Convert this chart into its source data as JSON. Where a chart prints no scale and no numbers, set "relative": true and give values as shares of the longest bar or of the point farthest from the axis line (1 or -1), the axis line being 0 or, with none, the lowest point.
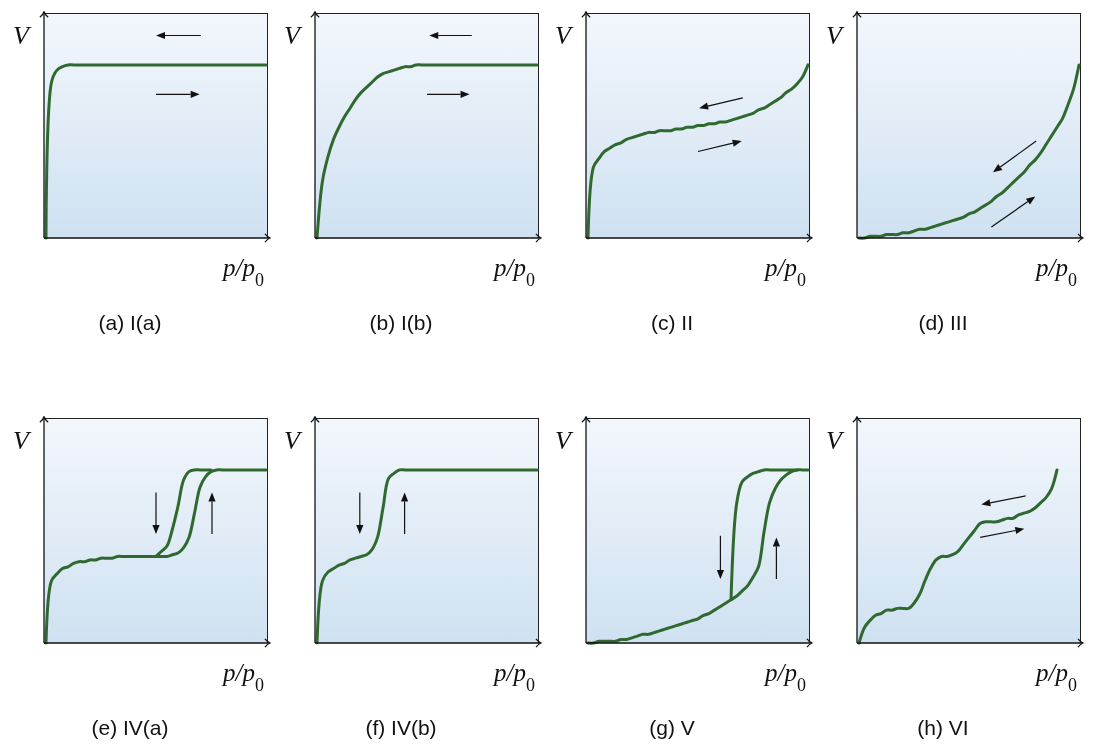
{
  "chart_data": [
    {
      "type": "line",
      "title": "(a) I(a)",
      "xlabel": "p/p$_{0}$",
      "ylabel": "V",
      "relative": true,
      "tick_labels": false,
      "categories": [
        null,
        null,
        null,
        null,
        null,
        null,
        null,
        null,
        null,
        null,
        null,
        null,
        null,
        null,
        null,
        null,
        null,
        null,
        null,
        null,
        null,
        null,
        null,
        null,
        null,
        null,
        null,
        null,
        null,
        null,
        null,
        null,
        null,
        null,
        null,
        null,
        null,
        null,
        null,
        null,
        null
      ],
      "series": [
        {
          "color": "#30692f",
          "values": [
            0,
            0.9,
            0.97,
            0.99,
            1,
            1,
            1,
            1,
            1,
            1,
            1,
            1,
            1,
            1,
            1,
            1,
            1,
            1,
            1,
            1,
            1,
            1,
            1,
            1,
            1,
            1,
            1,
            1,
            1,
            1,
            1,
            1,
            1,
            1,
            1,
            1,
            1,
            1,
            1,
            1,
            1
          ]
        }
      ]
    },
    {
      "type": "line",
      "title": "(b) I(b)",
      "xlabel": "p/p$_{0}$",
      "ylabel": "V",
      "relative": true,
      "tick_labels": false,
      "categories": [
        null,
        null,
        null,
        null,
        null,
        null,
        null,
        null,
        null,
        null,
        null,
        null,
        null,
        null,
        null,
        null,
        null,
        null,
        null,
        null,
        null,
        null,
        null,
        null,
        null,
        null,
        null,
        null,
        null,
        null,
        null,
        null,
        null,
        null,
        null,
        null,
        null,
        null,
        null,
        null,
        null
      ],
      "series": [
        {
          "color": "#30692f",
          "values": [
            0,
            0.33,
            0.47,
            0.57,
            0.64,
            0.7,
            0.75,
            0.8,
            0.84,
            0.87,
            0.9,
            0.93,
            0.95,
            0.96,
            0.97,
            0.98,
            0.99,
            0.99,
            1,
            1,
            1,
            1,
            1,
            1,
            1,
            1,
            1,
            1,
            1,
            1,
            1,
            1,
            1,
            1,
            1,
            1,
            1,
            1,
            1,
            1,
            1
          ]
        }
      ]
    },
    {
      "type": "line",
      "title": "(c) II",
      "xlabel": "p/p$_{0}$",
      "ylabel": "V",
      "relative": true,
      "tick_labels": false,
      "categories": [
        null,
        null,
        null,
        null,
        null,
        null,
        null,
        null,
        null,
        null,
        null,
        null,
        null,
        null,
        null,
        null,
        null,
        null,
        null,
        null,
        null,
        null,
        null,
        null,
        null,
        null,
        null,
        null,
        null,
        null,
        null,
        null,
        null,
        null,
        null,
        null,
        null,
        null,
        null,
        null,
        null
      ],
      "series": [
        {
          "color": "#30692f",
          "values": [
            0,
            0.41,
            0.46,
            0.5,
            0.52,
            0.54,
            0.55,
            0.57,
            0.58,
            0.59,
            0.6,
            0.61,
            0.61,
            0.62,
            0.62,
            0.62,
            0.63,
            0.63,
            0.64,
            0.64,
            0.65,
            0.65,
            0.66,
            0.66,
            0.67,
            0.67,
            0.68,
            0.69,
            0.7,
            0.71,
            0.72,
            0.74,
            0.75,
            0.77,
            0.79,
            0.81,
            0.84,
            0.86,
            0.89,
            0.93,
            1
          ]
        }
      ]
    },
    {
      "type": "line",
      "title": "(d) III",
      "xlabel": "p/p$_{0}$",
      "ylabel": "V",
      "relative": true,
      "tick_labels": false,
      "categories": [
        null,
        null,
        null,
        null,
        null,
        null,
        null,
        null,
        null,
        null,
        null,
        null,
        null,
        null,
        null,
        null,
        null,
        null,
        null,
        null,
        null,
        null,
        null,
        null,
        null,
        null,
        null,
        null,
        null,
        null,
        null,
        null,
        null,
        null,
        null,
        null,
        null,
        null,
        null,
        null,
        null
      ],
      "series": [
        {
          "color": "#30692f",
          "values": [
            0,
            0,
            0.01,
            0.01,
            0.01,
            0.02,
            0.02,
            0.02,
            0.03,
            0.03,
            0.04,
            0.05,
            0.05,
            0.06,
            0.07,
            0.08,
            0.09,
            0.1,
            0.11,
            0.12,
            0.14,
            0.15,
            0.17,
            0.19,
            0.21,
            0.24,
            0.26,
            0.29,
            0.32,
            0.35,
            0.38,
            0.42,
            0.45,
            0.49,
            0.54,
            0.59,
            0.64,
            0.69,
            0.77,
            0.86,
            1
          ]
        }
      ]
    },
    {
      "type": "line",
      "title": "(e) IV(a)",
      "xlabel": "p/p$_{0}$",
      "ylabel": "V",
      "relative": true,
      "tick_labels": false,
      "categories": [
        null,
        null,
        null,
        null,
        null,
        null,
        null,
        null,
        null,
        null,
        null,
        null,
        null,
        null,
        null,
        null,
        null,
        null,
        null,
        null,
        null,
        null,
        null,
        null,
        null,
        null,
        null,
        null,
        null,
        null,
        null,
        null,
        null,
        null,
        null,
        null,
        null,
        null,
        null,
        null,
        null
      ],
      "series": [
        {
          "color": "#30692f",
          "values": [
            0,
            0.36,
            0.4,
            0.43,
            0.44,
            0.46,
            0.47,
            0.47,
            0.48,
            0.48,
            0.49,
            0.49,
            0.49,
            0.5,
            0.5,
            0.5,
            0.5,
            0.5,
            0.5,
            0.5,
            0.5,
            0.5,
            0.5,
            0.51,
            0.52,
            0.55,
            0.61,
            0.75,
            0.9,
            0.96,
            0.99,
            1,
            1,
            1,
            1,
            1,
            1,
            1,
            1,
            1,
            1
          ]
        },
        {
          "color": "#30692f",
          "values": [
            null,
            null,
            null,
            null,
            null,
            null,
            null,
            null,
            null,
            null,
            null,
            null,
            null,
            null,
            null,
            null,
            null,
            null,
            null,
            null,
            0.5,
            0.53,
            0.56,
            0.66,
            0.79,
            0.94,
            0.99,
            1,
            1,
            1,
            1,
            null,
            null,
            null,
            null,
            null,
            null,
            null,
            null,
            null,
            null
          ]
        }
      ]
    },
    {
      "type": "line",
      "title": "(f) IV(b)",
      "xlabel": "p/p$_{0}$",
      "ylabel": "V",
      "relative": true,
      "tick_labels": false,
      "categories": [
        null,
        null,
        null,
        null,
        null,
        null,
        null,
        null,
        null,
        null,
        null,
        null,
        null,
        null,
        null,
        null,
        null,
        null,
        null,
        null,
        null,
        null,
        null,
        null,
        null,
        null,
        null,
        null,
        null,
        null,
        null,
        null,
        null,
        null,
        null,
        null,
        null,
        null,
        null,
        null,
        null
      ],
      "series": [
        {
          "color": "#30692f",
          "values": [
            0,
            0.36,
            0.41,
            0.43,
            0.45,
            0.46,
            0.48,
            0.49,
            0.5,
            0.51,
            0.54,
            0.61,
            0.78,
            0.95,
            0.98,
            1,
            1,
            1,
            1,
            1,
            1,
            1,
            1,
            1,
            1,
            1,
            1,
            1,
            1,
            1,
            1,
            1,
            1,
            1,
            1,
            1,
            1,
            1,
            1,
            1,
            1
          ]
        }
      ]
    },
    {
      "type": "line",
      "title": "(g) V",
      "xlabel": "p/p$_{0}$",
      "ylabel": "V",
      "relative": true,
      "tick_labels": false,
      "categories": [
        null,
        null,
        null,
        null,
        null,
        null,
        null,
        null,
        null,
        null,
        null,
        null,
        null,
        null,
        null,
        null,
        null,
        null,
        null,
        null,
        null,
        null,
        null,
        null,
        null,
        null,
        null,
        null,
        null,
        null,
        null,
        null,
        null,
        null,
        null,
        null,
        null,
        null,
        null,
        null,
        null
      ],
      "series": [
        {
          "color": "#30692f",
          "values": [
            0,
            0,
            0.01,
            0.01,
            0.01,
            0.01,
            0.02,
            0.02,
            0.03,
            0.04,
            0.05,
            0.05,
            0.06,
            0.07,
            0.08,
            0.09,
            0.1,
            0.11,
            0.12,
            0.13,
            0.14,
            0.16,
            0.17,
            0.19,
            0.21,
            0.23,
            0.25,
            0.27,
            0.3,
            0.33,
            0.38,
            0.44,
            0.64,
            0.81,
            0.89,
            0.94,
            0.97,
            0.99,
            1,
            1,
            1
          ]
        },
        {
          "color": "#30692f",
          "values": [
            null,
            null,
            null,
            null,
            null,
            null,
            null,
            null,
            null,
            null,
            null,
            null,
            null,
            null,
            null,
            null,
            null,
            null,
            null,
            null,
            null,
            null,
            null,
            null,
            null,
            null,
            0.25,
            0.8,
            0.93,
            0.96,
            0.98,
            0.99,
            1,
            1,
            1,
            1,
            1,
            1,
            1,
            null,
            null
          ]
        }
      ]
    },
    {
      "type": "line",
      "title": "(h) VI",
      "xlabel": "p/p$_{0}$",
      "ylabel": "V",
      "relative": true,
      "tick_labels": false,
      "categories": [
        null,
        null,
        null,
        null,
        null,
        null,
        null,
        null,
        null,
        null,
        null,
        null,
        null,
        null,
        null,
        null,
        null,
        null,
        null,
        null,
        null,
        null,
        null,
        null,
        null,
        null,
        null,
        null,
        null,
        null,
        null,
        null,
        null,
        null,
        null,
        null,
        null,
        null,
        null,
        null,
        null
      ],
      "series": [
        {
          "color": "#30692f",
          "values": [
            0,
            0.09,
            0.13,
            0.16,
            0.17,
            0.19,
            0.19,
            0.2,
            0.2,
            0.2,
            0.23,
            0.28,
            0.36,
            0.43,
            0.48,
            0.5,
            0.5,
            0.51,
            0.53,
            0.57,
            0.61,
            0.65,
            0.69,
            0.7,
            0.7,
            0.7,
            0.71,
            0.72,
            0.72,
            0.74,
            0.75,
            0.76,
            0.78,
            0.81,
            0.84,
            0.89,
            1,
            null,
            null,
            null,
            null
          ]
        }
      ]
    }
  ]
}
